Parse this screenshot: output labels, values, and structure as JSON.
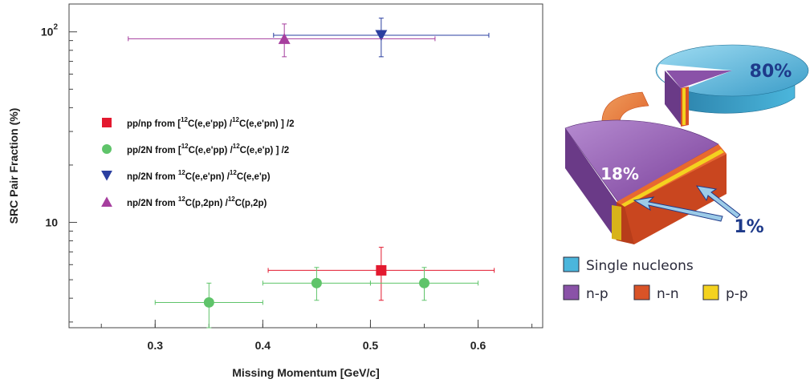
{
  "chart_data": [
    {
      "type": "scatter",
      "xlabel": "Missing Momentum [GeV/c]",
      "ylabel": "SRC Pair Fraction (%)",
      "xlim": [
        0.22,
        0.66
      ],
      "ylim": [
        2.8,
        140
      ],
      "y_scale": "log",
      "x_ticks": [
        "0.3",
        "0.4",
        "0.5",
        "0.6"
      ],
      "y_ticks": [
        {
          "value": 10,
          "base": "10",
          "exp": ""
        },
        {
          "value": 100,
          "base": "10",
          "exp": "2"
        }
      ],
      "legend_position": "left",
      "series": [
        {
          "name_parts": [
            "pp/np from [",
            "12",
            "C(e,e'pp) /",
            "12",
            "C(e,e'pn) ] /2"
          ],
          "marker": "square",
          "color": "#e3192f",
          "points": [
            {
              "x": 0.51,
              "y": 5.6,
              "xerr": [
                0.405,
                0.615
              ],
              "yerr": [
                3.9,
                7.4
              ]
            }
          ]
        },
        {
          "name_parts": [
            "pp/2N from [",
            "12",
            "C(e,e'pp) /",
            "12",
            "C(e,e'p) ] /2"
          ],
          "marker": "circle",
          "color": "#5fc46a",
          "points": [
            {
              "x": 0.35,
              "y": 3.8,
              "xerr": [
                0.3,
                0.4
              ],
              "yerr": [
                2.8,
                4.8
              ]
            },
            {
              "x": 0.45,
              "y": 4.8,
              "xerr": [
                0.4,
                0.5
              ],
              "yerr": [
                3.9,
                5.8
              ]
            },
            {
              "x": 0.55,
              "y": 4.8,
              "xerr": [
                0.5,
                0.6
              ],
              "yerr": [
                3.9,
                5.8
              ]
            }
          ]
        },
        {
          "name_parts": [
            "np/2N from ",
            "12",
            "C(e,e'pn) /",
            "12",
            "C(e,e'p)"
          ],
          "marker": "triangle-down",
          "color": "#2b3fa0",
          "points": [
            {
              "x": 0.51,
              "y": 96,
              "xerr": [
                0.41,
                0.61
              ],
              "yerr": [
                74,
                118
              ]
            }
          ]
        },
        {
          "name_parts": [
            "np/2N from ",
            "12",
            "C(p,2pn) /",
            "12",
            "C(p,2p)"
          ],
          "marker": "triangle-up",
          "color": "#a63e9e",
          "points": [
            {
              "x": 0.42,
              "y": 92,
              "xerr": [
                0.275,
                0.56
              ],
              "yerr": [
                74,
                110
              ]
            }
          ]
        }
      ]
    },
    {
      "type": "pie",
      "slices": [
        {
          "label": "Single nucleons",
          "value": 80,
          "color": "#4bb6dc",
          "shown_label": "80%"
        },
        {
          "label": "n-p",
          "value": 18,
          "color": "#8a52a8",
          "shown_label": "18%"
        },
        {
          "label": "n-n",
          "value": 1,
          "color": "#d95327",
          "shown_label": ""
        },
        {
          "label": "p-p",
          "value": 1,
          "color": "#f4d21f",
          "shown_label": ""
        }
      ],
      "annotation": "1%",
      "legend_position": "bottom"
    }
  ]
}
